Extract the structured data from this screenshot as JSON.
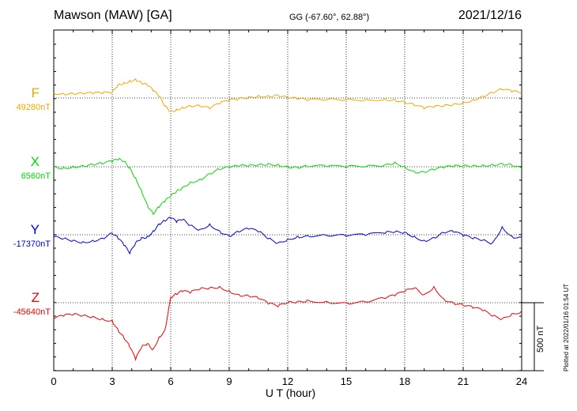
{
  "header": {
    "station": "Mawson (MAW)  [GA]",
    "coords": "GG (-67.60°,  62.88°)",
    "date": "2021/12/16"
  },
  "xaxis": {
    "label": "U T (hour)"
  },
  "plotted_note": "Plotted at 2022/01/16 01:54 UT",
  "scale_label": "500 nT",
  "components": [
    {
      "name": "F",
      "baseline": "49280nT",
      "color": "#f0a800"
    },
    {
      "name": "X",
      "baseline": "6560nT",
      "color": "#00dd00"
    },
    {
      "name": "Y",
      "baseline": "-17370nT",
      "color": "#0000dd"
    },
    {
      "name": "Z",
      "baseline": "-45640nT",
      "color": "#ee0000"
    }
  ],
  "chart_data": {
    "type": "line",
    "title": "Mawson (MAW)  [GA]",
    "xlabel": "U T (hour)",
    "ylabel": "",
    "xlim": [
      0,
      24
    ],
    "xticks": [
      0,
      3,
      6,
      9,
      12,
      15,
      18,
      21,
      24
    ],
    "grid": true,
    "units": "nT",
    "scale_bar_nT": 500,
    "series": [
      {
        "name": "F",
        "baseline_nT": 49280,
        "color": "#f0a800",
        "x": [
          0,
          0.5,
          1,
          1.5,
          2,
          2.5,
          3,
          3.3,
          3.6,
          3.9,
          4.2,
          4.5,
          4.8,
          5.1,
          5.4,
          5.7,
          6,
          6.3,
          6.6,
          7,
          7.5,
          8,
          8.5,
          9,
          9.5,
          10,
          10.5,
          11,
          11.5,
          12,
          12.5,
          13,
          14,
          15,
          16,
          17,
          17.5,
          18,
          18.5,
          19,
          19.5,
          20,
          20.5,
          21,
          21.5,
          22,
          22.5,
          23,
          23.5,
          24
        ],
        "y": [
          40,
          35,
          32,
          30,
          30,
          32,
          40,
          100,
          115,
          130,
          140,
          110,
          90,
          50,
          10,
          -60,
          -95,
          -80,
          -65,
          -55,
          -60,
          -80,
          -45,
          -20,
          -5,
          10,
          20,
          18,
          22,
          0,
          -10,
          -20,
          -15,
          -10,
          -10,
          -5,
          -10,
          -30,
          -55,
          -80,
          -70,
          -60,
          -45,
          -30,
          -10,
          15,
          40,
          60,
          45,
          30
        ]
      },
      {
        "name": "X",
        "baseline_nT": 6560,
        "color": "#00dd00",
        "x": [
          0,
          0.5,
          1,
          1.5,
          2,
          2.5,
          3,
          3.3,
          3.6,
          3.9,
          4.2,
          4.5,
          4.8,
          5.1,
          5.4,
          5.7,
          6,
          6.3,
          6.6,
          7,
          7.5,
          8,
          8.5,
          9,
          9.5,
          10,
          10.5,
          11,
          11.5,
          12,
          12.5,
          13,
          14,
          15,
          16,
          17,
          17.5,
          18,
          18.5,
          19,
          19.5,
          20,
          20.5,
          21,
          21.5,
          22,
          22.5,
          23,
          23.5,
          24
        ],
        "y": [
          0,
          -5,
          5,
          10,
          15,
          20,
          35,
          50,
          40,
          -5,
          -80,
          -170,
          -280,
          -350,
          -300,
          -260,
          -220,
          -180,
          -150,
          -110,
          -90,
          -50,
          -20,
          -10,
          0,
          5,
          15,
          25,
          20,
          5,
          -5,
          0,
          0,
          -5,
          0,
          15,
          35,
          5,
          -35,
          -40,
          -25,
          -10,
          0,
          5,
          10,
          15,
          20,
          25,
          10,
          -15
        ]
      },
      {
        "name": "Y",
        "baseline_nT": -17370,
        "color": "#0000dd",
        "x": [
          0,
          0.5,
          1,
          1.5,
          2,
          2.5,
          3,
          3.3,
          3.6,
          3.9,
          4.2,
          4.5,
          4.8,
          5.1,
          5.4,
          5.7,
          6,
          6.3,
          6.6,
          7,
          7.5,
          8,
          8.5,
          9,
          9.5,
          10,
          10.5,
          11,
          11.5,
          12,
          12.5,
          13,
          14,
          15,
          16,
          17,
          17.5,
          18,
          18.5,
          19,
          19.5,
          20,
          20.5,
          21,
          21.5,
          22,
          22.5,
          23,
          23.5,
          24
        ],
        "y": [
          -20,
          -30,
          -40,
          -50,
          -40,
          -25,
          10,
          -30,
          -80,
          -140,
          -60,
          -20,
          -10,
          30,
          80,
          100,
          120,
          90,
          110,
          70,
          40,
          80,
          30,
          -10,
          20,
          40,
          20,
          -30,
          -60,
          -30,
          -10,
          -5,
          -5,
          -10,
          -5,
          10,
          20,
          20,
          -10,
          -40,
          -20,
          15,
          20,
          -10,
          -30,
          -40,
          -60,
          60,
          -10,
          -20
        ]
      },
      {
        "name": "Z",
        "baseline_nT": -45640,
        "color": "#ee0000",
        "x": [
          0,
          0.5,
          1,
          1.5,
          2,
          2.5,
          3,
          3.3,
          3.6,
          3.9,
          4.2,
          4.5,
          4.8,
          5.1,
          5.4,
          5.7,
          6,
          6.3,
          6.6,
          7,
          7.5,
          8,
          8.5,
          9,
          9.5,
          10,
          10.5,
          11,
          11.5,
          12,
          12.5,
          13,
          14,
          15,
          16,
          17,
          17.5,
          18,
          18.5,
          19,
          19.5,
          20,
          20.5,
          21,
          21.5,
          22,
          22.5,
          23,
          23.5,
          24
        ],
        "y": [
          -120,
          -100,
          -90,
          -95,
          -100,
          -115,
          -130,
          -200,
          -260,
          -330,
          -420,
          -330,
          -300,
          -340,
          -250,
          -200,
          40,
          60,
          80,
          70,
          100,
          110,
          120,
          90,
          60,
          50,
          30,
          -10,
          -30,
          0,
          10,
          20,
          10,
          0,
          5,
          30,
          50,
          80,
          110,
          60,
          120,
          30,
          0,
          -20,
          -40,
          -60,
          -100,
          -120,
          -80,
          -60
        ]
      }
    ]
  }
}
